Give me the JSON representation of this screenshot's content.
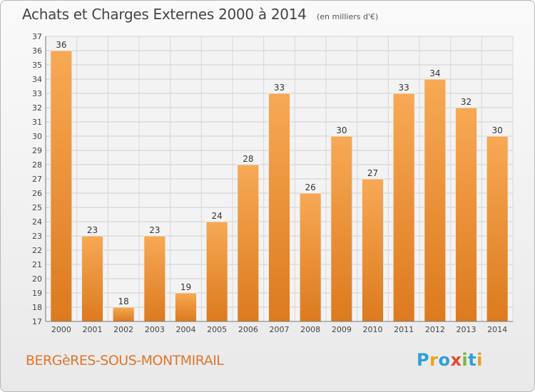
{
  "header": {
    "title": "Achats et Charges Externes 2000 à 2014",
    "subtitle": "(en milliers d'€)"
  },
  "footer": {
    "commune": "BERGèRES-SOUS-MONTMIRAIL",
    "logo": "Proxiti"
  },
  "colors": {
    "bar_light": "#f7a955",
    "bar_dark": "#dc7a1e",
    "commune_text": "#e0762c"
  },
  "chart_data": {
    "type": "bar",
    "title": "Achats et Charges Externes 2000 à 2014",
    "subtitle": "(en milliers d'€)",
    "categories": [
      "2000",
      "2001",
      "2002",
      "2003",
      "2004",
      "2005",
      "2006",
      "2007",
      "2008",
      "2009",
      "2010",
      "2011",
      "2012",
      "2013",
      "2014"
    ],
    "values": [
      36,
      23,
      18,
      23,
      19,
      24,
      28,
      33,
      26,
      30,
      27,
      33,
      34,
      32,
      30
    ],
    "ylim": [
      17,
      37
    ],
    "yticks": [
      17,
      18,
      19,
      20,
      21,
      22,
      23,
      24,
      25,
      26,
      27,
      28,
      29,
      30,
      31,
      32,
      33,
      34,
      35,
      36,
      37
    ],
    "grid": true,
    "data_labels": true,
    "xlabel": "",
    "ylabel": ""
  }
}
